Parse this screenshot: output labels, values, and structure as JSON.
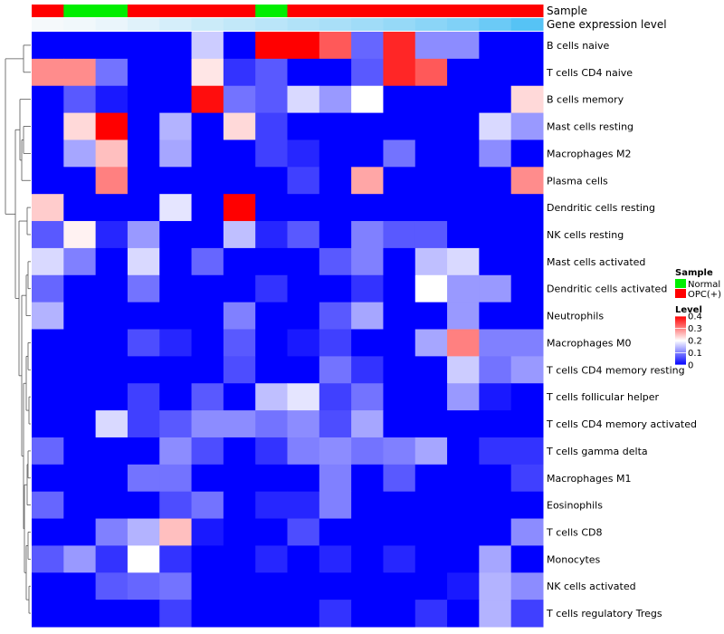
{
  "chart_data": {
    "type": "heatmap",
    "annotation_labels": [
      "Sample",
      "Gene expression level"
    ],
    "sample_groups": [
      "OPC(+)",
      "Normal",
      "Normal",
      "OPC(+)",
      "OPC(+)",
      "OPC(+)",
      "OPC(+)",
      "Normal",
      "OPC(+)",
      "OPC(+)",
      "OPC(+)",
      "OPC(+)",
      "OPC(+)",
      "OPC(+)",
      "OPC(+)",
      "OPC(+)"
    ],
    "expression_levels": [
      0.1,
      0.12,
      0.15,
      0.2,
      0.25,
      0.3,
      0.34,
      0.38,
      0.42,
      0.46,
      0.5,
      0.55,
      0.6,
      0.65,
      0.75,
      0.85
    ],
    "rows": [
      {
        "label": "B cells naive",
        "values": [
          0,
          0,
          0,
          0,
          0,
          0.16,
          0,
          0.4,
          0.4,
          0.33,
          0.08,
          0.37,
          0.11,
          0.11,
          0,
          0
        ]
      },
      {
        "label": "T cells CD4 naive",
        "values": [
          0.29,
          0.29,
          0.09,
          0,
          0,
          0.22,
          0.04,
          0.07,
          0,
          0,
          0.07,
          0.37,
          0.33,
          0,
          0,
          0
        ]
      },
      {
        "label": "B cells memory",
        "values": [
          0,
          0.07,
          0.02,
          0,
          0,
          0.39,
          0.09,
          0.07,
          0.17,
          0.12,
          0.2,
          0,
          0,
          0,
          0,
          0.23
        ]
      },
      {
        "label": "Mast cells resting",
        "values": [
          0,
          0.23,
          0.4,
          0,
          0.14,
          0,
          0.23,
          0.05,
          0,
          0,
          0,
          0,
          0,
          0,
          0.17,
          0.12
        ]
      },
      {
        "label": "Macrophages M2",
        "values": [
          0,
          0.13,
          0.25,
          0,
          0.13,
          0,
          0,
          0.05,
          0.03,
          0,
          0,
          0.09,
          0,
          0,
          0.11,
          0
        ]
      },
      {
        "label": "Plasma cells",
        "values": [
          0,
          0,
          0.3,
          0,
          0,
          0,
          0,
          0,
          0.05,
          0,
          0.27,
          0,
          0,
          0,
          0,
          0.29
        ]
      },
      {
        "label": "Dendritic cells resting",
        "values": [
          0.24,
          0,
          0,
          0,
          0.18,
          0,
          0.4,
          0,
          0,
          0,
          0,
          0,
          0,
          0,
          0,
          0
        ]
      },
      {
        "label": "NK cells resting",
        "values": [
          0.07,
          0.21,
          0.03,
          0.12,
          0,
          0,
          0.15,
          0.03,
          0.07,
          0,
          0.1,
          0.07,
          0.07,
          0,
          0,
          0
        ]
      },
      {
        "label": "Mast cells activated",
        "values": [
          0.17,
          0.1,
          0,
          0.17,
          0,
          0.08,
          0,
          0,
          0,
          0.07,
          0.1,
          0,
          0.15,
          0.17,
          0,
          0
        ]
      },
      {
        "label": "Dendritic cells activated",
        "values": [
          0.08,
          0,
          0,
          0.09,
          0,
          0,
          0,
          0.04,
          0,
          0,
          0.04,
          0,
          0.2,
          0.12,
          0.12,
          0
        ]
      },
      {
        "label": "Neutrophils",
        "values": [
          0.14,
          0,
          0,
          0,
          0,
          0,
          0.1,
          0,
          0,
          0.07,
          0.13,
          0,
          0,
          0.12,
          0,
          0
        ]
      },
      {
        "label": "Macrophages M0",
        "values": [
          0,
          0,
          0,
          0.06,
          0.03,
          0,
          0.07,
          0,
          0.02,
          0.05,
          0,
          0,
          0.13,
          0.3,
          0.1,
          0.1
        ]
      },
      {
        "label": "T cells CD4 memory resting",
        "values": [
          0,
          0,
          0,
          0,
          0,
          0,
          0.06,
          0,
          0,
          0.09,
          0.04,
          0,
          0,
          0.16,
          0.09,
          0.12
        ]
      },
      {
        "label": "T cells follicular helper",
        "values": [
          0,
          0,
          0,
          0.05,
          0,
          0.07,
          0,
          0.15,
          0.18,
          0.05,
          0.09,
          0,
          0,
          0.12,
          0.02,
          0
        ]
      },
      {
        "label": "T cells CD4 memory activated",
        "values": [
          0,
          0,
          0.17,
          0.05,
          0.07,
          0.11,
          0.11,
          0.09,
          0.11,
          0.06,
          0.13,
          0,
          0,
          0,
          0,
          0
        ]
      },
      {
        "label": "T cells gamma delta",
        "values": [
          0.08,
          0,
          0,
          0,
          0.11,
          0.06,
          0,
          0.04,
          0.1,
          0.11,
          0.09,
          0.1,
          0.13,
          0,
          0.04,
          0.04
        ]
      },
      {
        "label": "Macrophages M1",
        "values": [
          0,
          0,
          0,
          0.09,
          0.09,
          0,
          0,
          0,
          0,
          0.1,
          0,
          0.07,
          0,
          0,
          0,
          0.05
        ]
      },
      {
        "label": "Eosinophils",
        "values": [
          0.08,
          0,
          0,
          0,
          0.06,
          0.09,
          0,
          0.03,
          0.03,
          0.1,
          0,
          0,
          0,
          0,
          0,
          0
        ]
      },
      {
        "label": "T cells CD8",
        "values": [
          0,
          0,
          0.1,
          0.14,
          0.25,
          0.02,
          0,
          0,
          0.06,
          0,
          0,
          0,
          0,
          0,
          0,
          0.11
        ]
      },
      {
        "label": "Monocytes",
        "values": [
          0.07,
          0.12,
          0.04,
          0.2,
          0.04,
          0,
          0,
          0.03,
          0,
          0.03,
          0,
          0.03,
          0,
          0,
          0.13,
          0
        ]
      },
      {
        "label": "NK cells activated",
        "values": [
          0,
          0,
          0.07,
          0.08,
          0.09,
          0,
          0,
          0,
          0,
          0,
          0,
          0,
          0,
          0.02,
          0.14,
          0.11
        ]
      },
      {
        "label": "T cells regulatory  Tregs",
        "values": [
          0,
          0,
          0,
          0,
          0.05,
          0,
          0,
          0,
          0,
          0.04,
          0,
          0,
          0.04,
          0,
          0.14,
          0.05
        ]
      }
    ],
    "legend": {
      "sample_title": "Sample",
      "sample_entries": [
        {
          "name": "Normal",
          "color": "#00ee00"
        },
        {
          "name": "OPC(+)",
          "color": "#ff0000"
        }
      ],
      "level_title": "Level",
      "level_ticks": [
        0.4,
        0.3,
        0.2,
        0.1,
        0
      ],
      "range": [
        0,
        0.4
      ]
    },
    "colors": {
      "low": "#0000ff",
      "mid": "#ffffff",
      "high": "#ff0000",
      "normal": "#00ee00",
      "opc": "#ff0000",
      "expr_low": "#f5f9fb",
      "expr_high": "#56c3f5"
    }
  }
}
